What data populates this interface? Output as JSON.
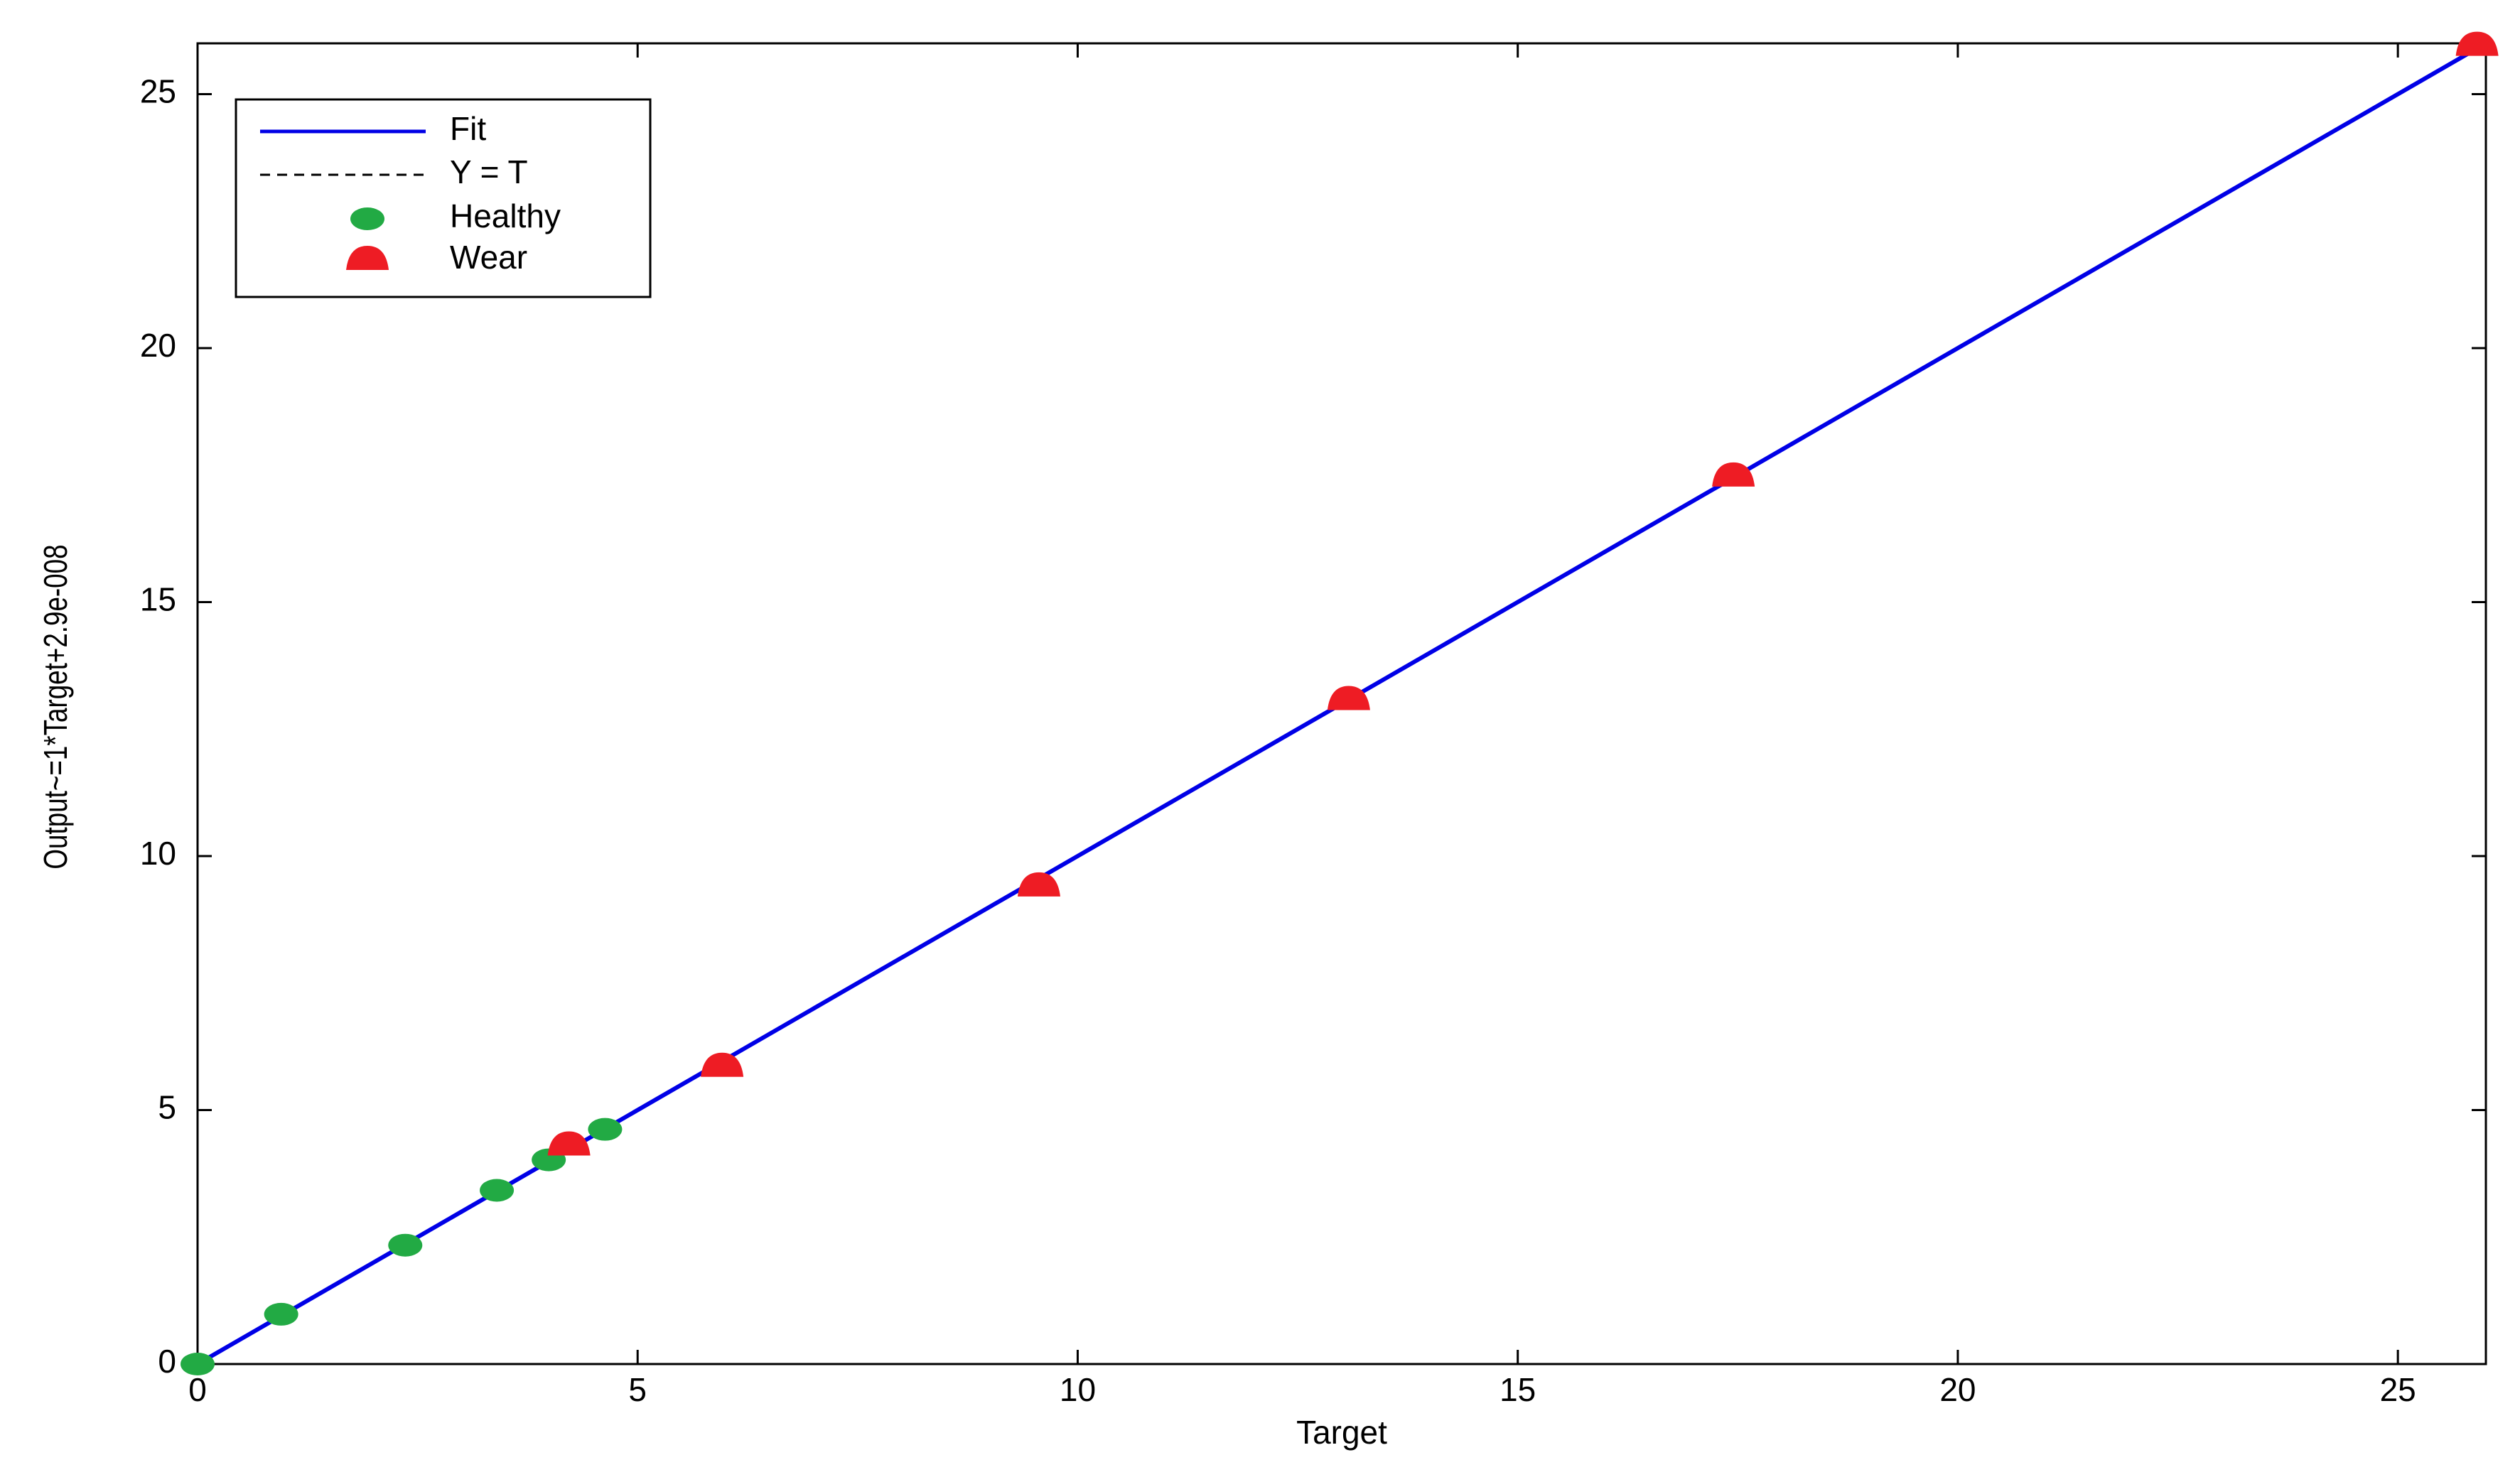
{
  "chart_data": {
    "type": "scatter",
    "xlabel": "Target",
    "ylabel": "Output~=1*Target+2.9e-008",
    "xlim": [
      0,
      26
    ],
    "ylim": [
      0,
      26
    ],
    "xticks": [
      0,
      5,
      10,
      15,
      20,
      25
    ],
    "yticks": [
      0,
      5,
      10,
      15,
      20,
      25
    ],
    "legend": "upper left",
    "series": [
      {
        "name": "Fit",
        "color": "#0000e6",
        "mode": "line",
        "x": [
          0,
          26
        ],
        "values": [
          0,
          26
        ]
      },
      {
        "name": "Y = T",
        "color": "#000000",
        "mode": "dashed",
        "x": [
          0,
          26
        ],
        "values": [
          0,
          26
        ]
      },
      {
        "name": "Healthy",
        "color": "#22aa44",
        "mode": "circle",
        "x": [
          0,
          0.95,
          2.36,
          3.4,
          3.99,
          4.63
        ],
        "values": [
          0,
          0.98,
          2.34,
          3.42,
          4.02,
          4.62
        ]
      },
      {
        "name": "Wear",
        "color": "#ee1c24",
        "mode": "triangle",
        "x": [
          4.22,
          5.96,
          9.56,
          13.08,
          17.45,
          25.9
        ],
        "values": [
          4.3,
          5.85,
          9.4,
          13.07,
          17.47,
          25.95
        ]
      }
    ]
  }
}
